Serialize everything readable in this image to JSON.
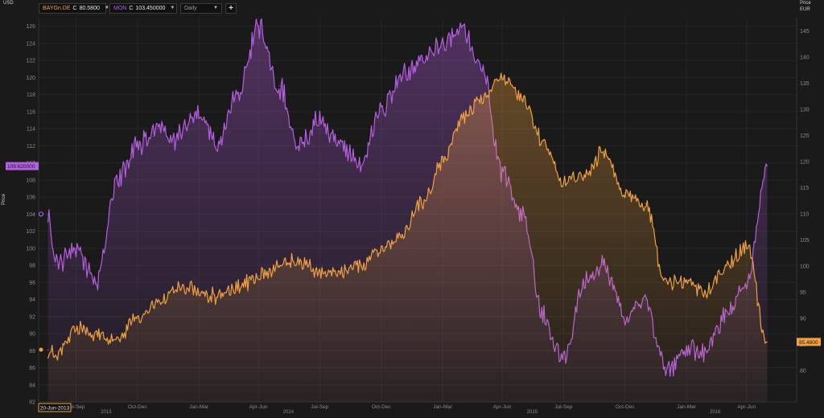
{
  "toolbar": {
    "series1": {
      "symbol": "BAYGn.DE",
      "type": "C",
      "value": "80.5800"
    },
    "series2": {
      "symbol": "MON",
      "type": "C",
      "value": "103.450000"
    },
    "interval": "Daily",
    "add_label": "+"
  },
  "axes": {
    "left_unit": "USD",
    "left_title": "Price",
    "right_title": "Price",
    "right_unit": "EUR"
  },
  "colors": {
    "background": "#1a1a1a",
    "bayer": "#f0a040",
    "monsanto": "#b45ee0",
    "grid": "#262626",
    "tick_text": "#8a8a8a"
  },
  "chart_data": {
    "type": "line",
    "title": "",
    "x": [
      "2013-06-20",
      "2013-07-01",
      "2013-08-01",
      "2013-09-01",
      "2013-10-01",
      "2013-11-01",
      "2013-12-01",
      "2014-01-01",
      "2014-02-01",
      "2014-03-01",
      "2014-04-01",
      "2014-05-01",
      "2014-06-01",
      "2014-07-01",
      "2014-08-01",
      "2014-09-01",
      "2014-10-01",
      "2014-11-01",
      "2014-12-01",
      "2015-01-01",
      "2015-02-01",
      "2015-03-01",
      "2015-04-01",
      "2015-05-01",
      "2015-06-01",
      "2015-07-01",
      "2015-08-01",
      "2015-09-01",
      "2015-10-01",
      "2015-11-01",
      "2015-12-01",
      "2016-01-01",
      "2016-02-01",
      "2016-03-01",
      "2016-04-01",
      "2016-05-01",
      "2016-06-01"
    ],
    "series": [
      {
        "name": "BAYGn.DE",
        "axis": "right",
        "color": "#f0a040",
        "values": [
          84,
          83,
          88,
          87,
          86,
          90,
          93,
          96,
          95,
          94,
          96,
          98,
          100,
          101,
          99,
          99,
          100,
          103,
          106,
          112,
          120,
          128,
          132,
          136,
          132,
          124,
          116,
          117,
          122,
          114,
          112,
          97,
          97,
          95,
          100,
          104,
          85.48
        ]
      },
      {
        "name": "MON",
        "axis": "left",
        "color": "#b45ee0",
        "values": [
          104,
          98,
          100,
          96,
          108,
          112,
          114,
          113,
          116,
          112,
          118,
          126,
          119,
          112,
          115,
          112,
          110,
          116,
          120,
          122,
          124,
          126,
          121,
          109,
          104,
          92,
          87,
          96,
          98,
          92,
          94,
          86,
          88,
          88,
          92,
          96,
          109.62
        ]
      }
    ],
    "left_axis": {
      "label": "Price",
      "unit": "USD",
      "ylim": [
        82,
        127
      ],
      "ticks": [
        82,
        84,
        86,
        88,
        90,
        92,
        94,
        96,
        98,
        100,
        102,
        104,
        106,
        108,
        110,
        112,
        114,
        116,
        118,
        120,
        122,
        124,
        126
      ]
    },
    "right_axis": {
      "label": "Price",
      "unit": "EUR",
      "ylim": [
        74,
        147.5
      ],
      "ticks": [
        80,
        85,
        90,
        95,
        100,
        105,
        110,
        115,
        120,
        125,
        130,
        135,
        140,
        145
      ]
    },
    "x_ticks": [
      {
        "date": "2013-08-01",
        "label": "Jul-Sep"
      },
      {
        "date": "2013-11-01",
        "label": "Oct-Dec"
      },
      {
        "date": "2014-02-01",
        "label": "Jan-Mar"
      },
      {
        "date": "2014-05-01",
        "label": "Apr-Jun"
      },
      {
        "date": "2014-08-01",
        "label": "Jul-Sep"
      },
      {
        "date": "2014-11-01",
        "label": "Oct-Dec"
      },
      {
        "date": "2015-02-01",
        "label": "Jan-Mar"
      },
      {
        "date": "2015-05-01",
        "label": "Apr-Jun"
      },
      {
        "date": "2015-08-01",
        "label": "Jul-Sep"
      },
      {
        "date": "2015-11-01",
        "label": "Oct-Dec"
      },
      {
        "date": "2016-02-01",
        "label": "Jan-Mar"
      },
      {
        "date": "2016-05-01",
        "label": "Apr-Jun"
      }
    ],
    "year_labels": [
      {
        "date": "2013-09-15",
        "label": "2013"
      },
      {
        "date": "2014-06-15",
        "label": "2014"
      },
      {
        "date": "2015-06-15",
        "label": "2015"
      },
      {
        "date": "2016-03-15",
        "label": "2016"
      }
    ],
    "start_label": "20-Jun-2013",
    "last_labels": {
      "left": "109.620000",
      "right": "85.4800"
    },
    "grid": true,
    "legend": "top-left"
  }
}
